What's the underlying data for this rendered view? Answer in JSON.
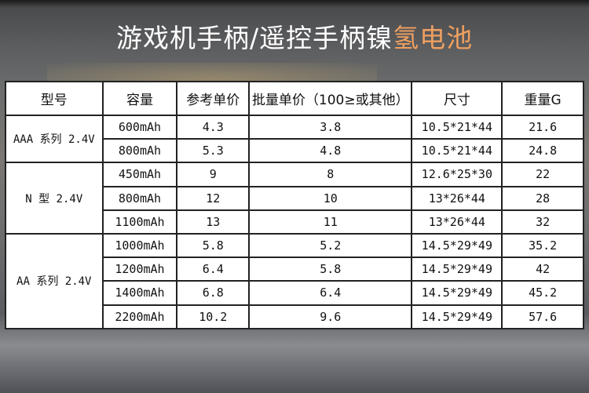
{
  "title": {
    "main": "游戏机手柄/遥控手柄镍",
    "highlight": "氢电池",
    "highlight_color": "#f0a060"
  },
  "table": {
    "headers": [
      "型号",
      "容量",
      "参考单价",
      "批量单价（100≥或其他）",
      "尺寸",
      "重量G"
    ],
    "groups": [
      {
        "model": "AAA 系列 2.4V",
        "rows": [
          [
            "600mAh",
            "4.3",
            "3.8",
            "10.5*21*44",
            "21.6"
          ],
          [
            "800mAh",
            "5.3",
            "4.8",
            "10.5*21*44",
            "24.8"
          ]
        ]
      },
      {
        "model": "N 型 2.4V",
        "rows": [
          [
            "450mAh",
            "9",
            "8",
            "12.6*25*30",
            "22"
          ],
          [
            "800mAh",
            "12",
            "10",
            "13*26*44",
            "28"
          ],
          [
            "1100mAh",
            "13",
            "11",
            "13*26*44",
            "32"
          ]
        ]
      },
      {
        "model": "AA 系列 2.4V",
        "rows": [
          [
            "1000mAh",
            "5.8",
            "5.2",
            "14.5*29*49",
            "35.2"
          ],
          [
            "1200mAh",
            "6.4",
            "5.8",
            "14.5*29*49",
            "42"
          ],
          [
            "1400mAh",
            "6.8",
            "6.4",
            "14.5*29*49",
            "45.2"
          ],
          [
            "2200mAh",
            "10.2",
            "9.6",
            "14.5*29*49",
            "57.6"
          ]
        ]
      }
    ]
  }
}
